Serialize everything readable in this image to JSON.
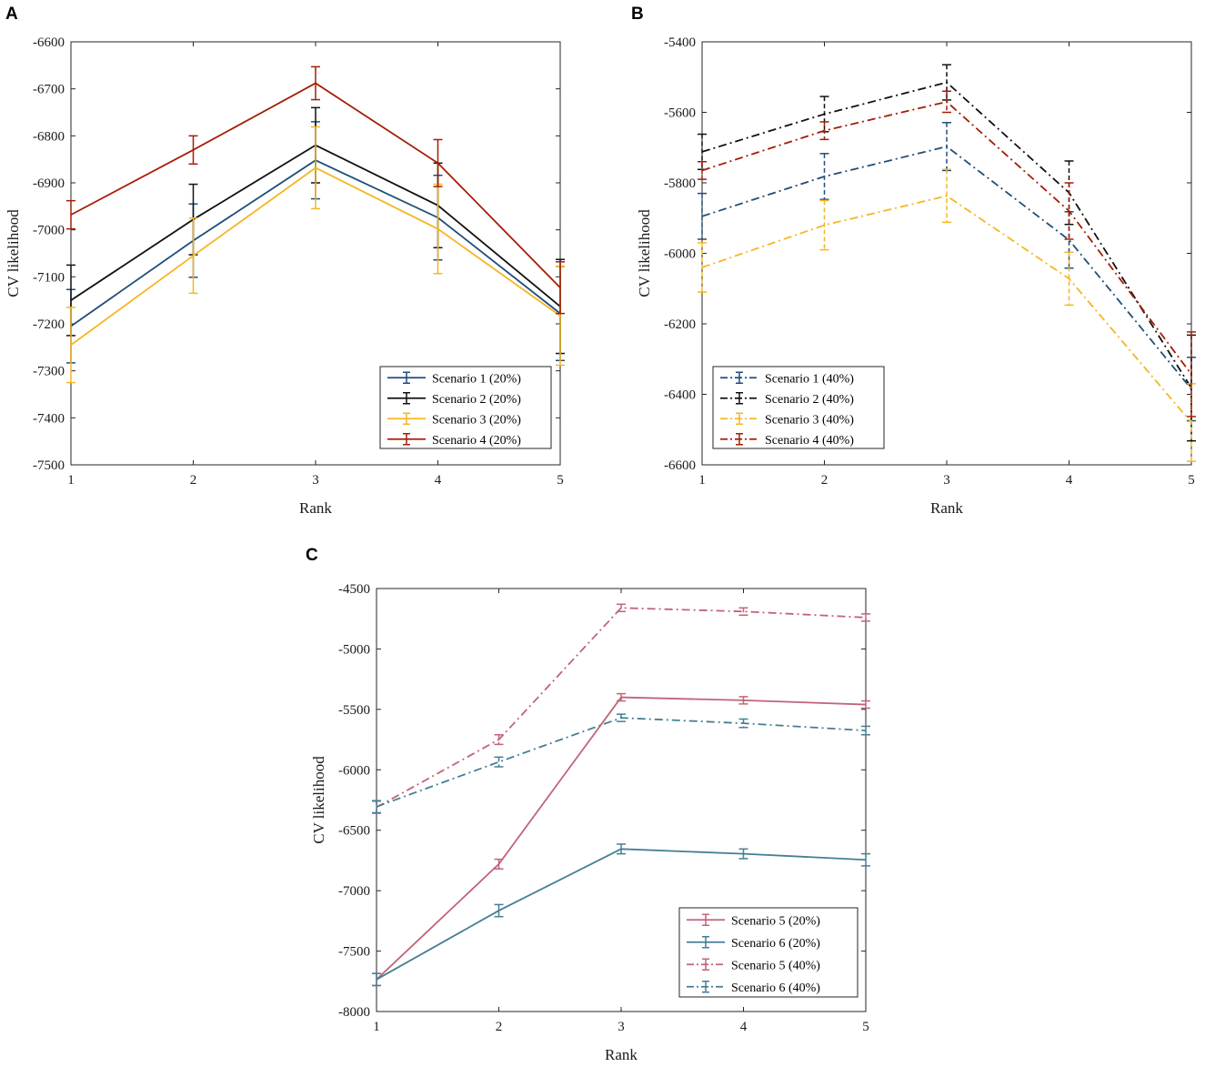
{
  "figure": {
    "panels": [
      "A",
      "B",
      "C"
    ]
  },
  "chart_data": [
    {
      "panel": "A",
      "type": "line",
      "title": "",
      "xlabel": "Rank",
      "ylabel": "CV likelihood",
      "x": [
        1,
        2,
        3,
        4,
        5
      ],
      "xticks": [
        "1",
        "2",
        "3",
        "4",
        "5"
      ],
      "xlim": [
        1,
        5
      ],
      "ylim": [
        -7500,
        -6600
      ],
      "yticks": [
        "-6600",
        "-6700",
        "-6800",
        "-6900",
        "-7000",
        "-7100",
        "-7200",
        "-7300",
        "-7400",
        "-7500"
      ],
      "grid": false,
      "legend": "bottom-right",
      "series": [
        {
          "name": "Scenario 1 (20%)",
          "color": "#1f4e79",
          "dash": "solid",
          "values": [
            -7205,
            -7023,
            -6852,
            -6974,
            -7178
          ],
          "errors": [
            78,
            78,
            82,
            90,
            100
          ]
        },
        {
          "name": "Scenario 2 (20%)",
          "color": "#111111",
          "dash": "solid",
          "values": [
            -7150,
            -6978,
            -6820,
            -6948,
            -7163
          ],
          "errors": [
            75,
            75,
            80,
            90,
            100
          ]
        },
        {
          "name": "Scenario 3 (20%)",
          "color": "#f5b623",
          "dash": "solid",
          "values": [
            -7245,
            -7055,
            -6868,
            -6998,
            -7183
          ],
          "errors": [
            80,
            80,
            87,
            95,
            105
          ]
        },
        {
          "name": "Scenario 4 (20%)",
          "color": "#a51d05",
          "dash": "solid",
          "values": [
            -6968,
            -6830,
            -6688,
            -6858,
            -7123
          ],
          "errors": [
            30,
            30,
            35,
            50,
            55
          ]
        }
      ]
    },
    {
      "panel": "B",
      "type": "line",
      "title": "",
      "xlabel": "Rank",
      "ylabel": "CV likelihood",
      "x": [
        1,
        2,
        3,
        4,
        5
      ],
      "xticks": [
        "1",
        "2",
        "3",
        "4",
        "5"
      ],
      "xlim": [
        1,
        5
      ],
      "ylim": [
        -6600,
        -5400
      ],
      "yticks": [
        "-5400",
        "-5600",
        "-5800",
        "-6000",
        "-6200",
        "-6400",
        "-6600"
      ],
      "grid": false,
      "legend": "bottom-left",
      "series": [
        {
          "name": "Scenario 1 (40%)",
          "color": "#1f4e79",
          "dash": "dashdot",
          "values": [
            -5895,
            -5782,
            -5697,
            -5962,
            -6385
          ],
          "errors": [
            65,
            65,
            68,
            80,
            90
          ]
        },
        {
          "name": "Scenario 2 (40%)",
          "color": "#111111",
          "dash": "dashdot",
          "values": [
            -5712,
            -5605,
            -5515,
            -5828,
            -6382
          ],
          "errors": [
            50,
            50,
            50,
            90,
            150
          ]
        },
        {
          "name": "Scenario 3 (40%)",
          "color": "#f5b623",
          "dash": "dashdot",
          "values": [
            -6040,
            -5920,
            -5837,
            -6072,
            -6480
          ],
          "errors": [
            70,
            70,
            75,
            75,
            110
          ]
        },
        {
          "name": "Scenario 4 (40%)",
          "color": "#a51d05",
          "dash": "dashdot",
          "values": [
            -5765,
            -5652,
            -5570,
            -5880,
            -6343
          ],
          "errors": [
            25,
            25,
            30,
            80,
            120
          ]
        }
      ]
    },
    {
      "panel": "C",
      "type": "line",
      "title": "",
      "xlabel": "Rank",
      "ylabel": "CV likelihood",
      "x": [
        1,
        2,
        3,
        4,
        5
      ],
      "xticks": [
        "1",
        "2",
        "3",
        "4",
        "5"
      ],
      "xlim": [
        1,
        5
      ],
      "ylim": [
        -8000,
        -4500
      ],
      "yticks": [
        "-4500",
        "-5000",
        "-5500",
        "-6000",
        "-6500",
        "-7000",
        "-7500",
        "-8000"
      ],
      "grid": false,
      "legend": "bottom-right",
      "series": [
        {
          "name": "Scenario 5 (20%)",
          "color": "#c06479",
          "dash": "solid",
          "values": [
            -7735,
            -6780,
            -5400,
            -5425,
            -5460
          ],
          "errors": [
            50,
            40,
            30,
            30,
            30
          ]
        },
        {
          "name": "Scenario 6 (20%)",
          "color": "#467e94",
          "dash": "solid",
          "values": [
            -7735,
            -7165,
            -6655,
            -6695,
            -6745
          ],
          "errors": [
            50,
            50,
            40,
            40,
            50
          ]
        },
        {
          "name": "Scenario 5 (40%)",
          "color": "#c06479",
          "dash": "dashdot",
          "values": [
            -6310,
            -5750,
            -4660,
            -4690,
            -4740
          ],
          "errors": [
            50,
            40,
            30,
            30,
            30
          ]
        },
        {
          "name": "Scenario 6 (40%)",
          "color": "#467e94",
          "dash": "dashdot",
          "values": [
            -6305,
            -5935,
            -5570,
            -5615,
            -5675
          ],
          "errors": [
            50,
            40,
            30,
            35,
            35
          ]
        }
      ]
    }
  ]
}
